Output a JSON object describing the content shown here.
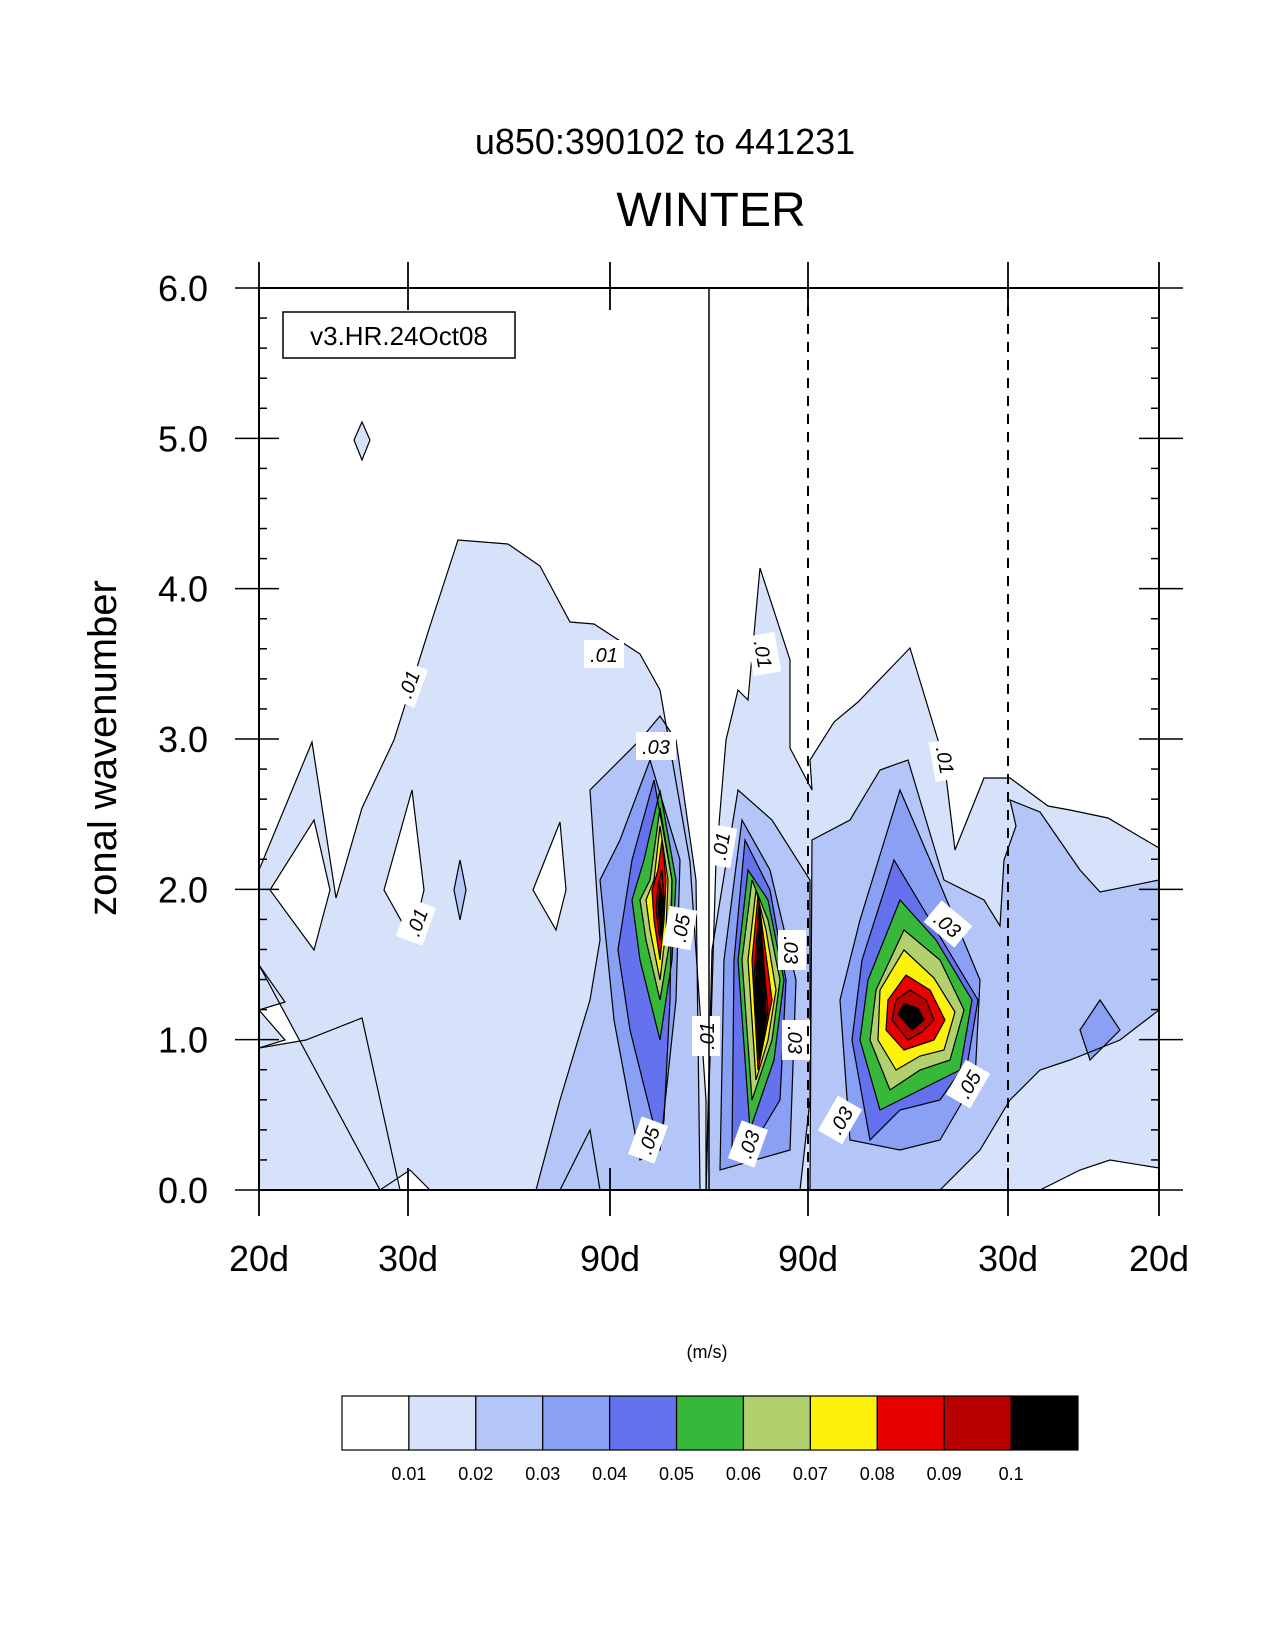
{
  "chart_data": {
    "type": "heatmap",
    "title": "WINTER",
    "subtitle": "u850:390102 to 441231",
    "xlabel": "",
    "ylabel": "zonal wavenumber",
    "units": "(m/s)",
    "annotation": "v3.HR.24Oct08",
    "x_ticks": [
      "20d",
      "30d",
      "90d",
      "90d",
      "30d",
      "20d"
    ],
    "y_ticks": [
      "0.0",
      "1.0",
      "2.0",
      "3.0",
      "4.0",
      "5.0",
      "6.0"
    ],
    "ylim": [
      0,
      6
    ],
    "grid": false,
    "legend_position": "bottom",
    "colorbar": {
      "levels": [
        "0.01",
        "0.02",
        "0.03",
        "0.04",
        "0.05",
        "0.06",
        "0.07",
        "0.08",
        "0.09",
        "0.1"
      ],
      "colors": [
        "#ffffff",
        "#d6e2fa",
        "#b3c6f7",
        "#8aa0f5",
        "#6472ee",
        "#37b83b",
        "#b2d16e",
        "#fdf20b",
        "#e60000",
        "#b90000",
        "#000000"
      ]
    },
    "contour_labels": [
      ".01",
      ".01",
      ".01",
      ".01",
      ".01",
      ".01",
      ".01",
      ".03",
      ".05",
      ".03",
      ".03",
      ".05",
      ".03",
      ".03",
      ".05",
      ".03"
    ],
    "vertical_lines": {
      "solid_center": true,
      "dashed": 2
    }
  }
}
